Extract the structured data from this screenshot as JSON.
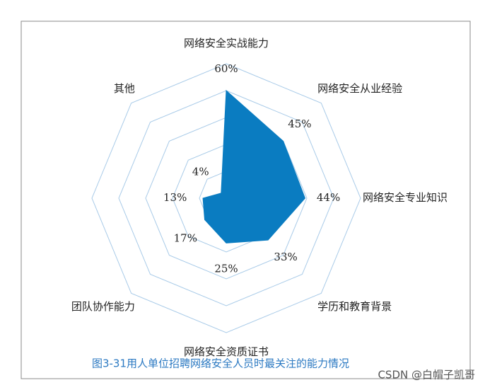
{
  "chart_data": {
    "type": "radar",
    "title": "图3-31用人单位招聘网络安全人员时最关注的能力情况",
    "categories": [
      "网络安全实战能力",
      "网络安全从业经验",
      "网络安全专业知识",
      "学历和教育背景",
      "网络安全资质证书",
      "团队协作能力",
      null,
      "其他"
    ],
    "values": [
      60,
      45,
      44,
      33,
      25,
      17,
      13,
      4
    ],
    "value_labels": [
      "60%",
      "45%",
      "44%",
      "33%",
      "25%",
      "17%",
      "13%",
      "4%"
    ],
    "color": "#0a7cc1",
    "ylim": [
      0,
      75
    ],
    "yticks": [
      15,
      30,
      45,
      60,
      75
    ],
    "grid": true,
    "watermark": "CSDN @白帽子凯哥"
  }
}
